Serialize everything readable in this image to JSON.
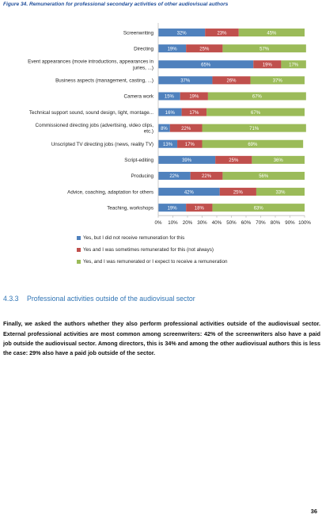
{
  "figure": {
    "caption": "Figure 34. Remuneration for professional secondary activities of other audiovisual authors"
  },
  "chart_data": {
    "type": "bar",
    "orientation": "horizontal",
    "stacked": true,
    "categories": [
      "Screenwriting",
      "Directing",
      "Event appearances (movie introductions, appearances in juries, ...)",
      "Business aspects (management, casting, ...)",
      "Camera work",
      "Technical support sound, sound design, light, montage...",
      "Commissioned directing jobs (advertising, video clips, etc.)",
      "Unscripted TV directing jobs (news, reality TV)",
      "Script-editing",
      "Producing",
      "Advice, coaching, adaptation for others",
      "Teaching, workshops"
    ],
    "category_lines": [
      [
        "Screenwriting"
      ],
      [
        "Directing"
      ],
      [
        "Event appearances (movie introductions, appearances in",
        "juries, ...)"
      ],
      [
        "Business aspects (management, casting, ...)"
      ],
      [
        "Camera work"
      ],
      [
        "Technical support sound, sound design, light, montage..."
      ],
      [
        "Commissioned directing jobs (advertising, video clips,",
        "etc.)"
      ],
      [
        "Unscripted TV directing jobs (news, reality TV)"
      ],
      [
        "Script-editing"
      ],
      [
        "Producing"
      ],
      [
        "Advice, coaching, adaptation for others"
      ],
      [
        "Teaching, workshops"
      ]
    ],
    "series": [
      {
        "name": "Yes, but I did not receive remuneration for this",
        "color": "#4f81bd",
        "values": [
          32,
          19,
          65,
          37,
          15,
          16,
          8,
          13,
          39,
          22,
          42,
          19
        ]
      },
      {
        "name": "Yes and I was sometimes remunerated for this (not always)",
        "color": "#c0504d",
        "values": [
          23,
          25,
          19,
          26,
          19,
          17,
          22,
          17,
          25,
          22,
          25,
          18
        ]
      },
      {
        "name": "Yes, and I was remunerated or I expect to receive a remuneration",
        "color": "#9bbb59",
        "values": [
          45,
          57,
          17,
          37,
          67,
          67,
          71,
          69,
          36,
          56,
          33,
          63
        ]
      }
    ],
    "xlim": [
      0,
      100
    ],
    "x_ticks": [
      "0%",
      "10%",
      "20%",
      "30%",
      "40%",
      "50%",
      "60%",
      "70%",
      "80%",
      "90%",
      "100%"
    ],
    "grid": false,
    "legend_position": "bottom-left",
    "label_suffix": "%"
  },
  "section": {
    "number": "4.3.3",
    "title": "Professional activities outside of the audiovisual sector"
  },
  "body_text": "Finally, we asked the authors whether they also perform professional activities outside of the audiovisual sector. External professional activities are most common among screenwriters: 42% of the screenwriters also have a paid job outside the audiovisual sector. Among directors, this is 34% and among the other audiovisual authors this is less the case: 29% also have a paid job outside of the sector.",
  "page_number": "36"
}
